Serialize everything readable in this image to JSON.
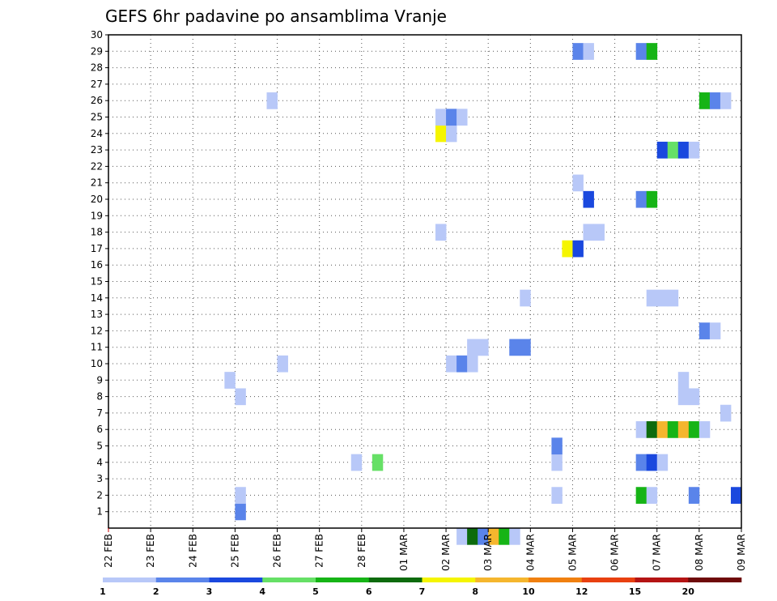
{
  "chart_data": {
    "type": "heatmap",
    "title": "GEFS 6hr padavine po ansamblima Vranje",
    "xlabel": "",
    "ylabel": "",
    "x_tick_labels": [
      "22 FEB",
      "23 FEB",
      "24 FEB",
      "25 FEB",
      "26 FEB",
      "27 FEB",
      "28 FEB",
      "01 MAR",
      "02 MAR",
      "03 MAR",
      "04 MAR",
      "05 MAR",
      "06 MAR",
      "07 MAR",
      "08 MAR",
      "09 MAR"
    ],
    "x_range_days": [
      0,
      15
    ],
    "y_tick_labels": [
      "1",
      "2",
      "3",
      "4",
      "5",
      "6",
      "7",
      "8",
      "9",
      "10",
      "11",
      "12",
      "13",
      "14",
      "15",
      "16",
      "17",
      "18",
      "19",
      "20",
      "21",
      "22",
      "23",
      "24",
      "25",
      "26",
      "27",
      "28",
      "29",
      "30"
    ],
    "y_range": [
      0,
      30
    ],
    "grid": true,
    "legend": {
      "placement": "bottom",
      "labels": [
        "1",
        "2",
        "3",
        "4",
        "5",
        "6",
        "7",
        "8",
        "10",
        "12",
        "15",
        "20"
      ],
      "colors": [
        "#b8c8f8",
        "#5a84ea",
        "#1a48de",
        "#66e066",
        "#16b416",
        "#0d6b0d",
        "#f5f500",
        "#f5b62e",
        "#f08010",
        "#e84010",
        "#b41414",
        "#6e0a0a"
      ]
    },
    "cells_note": "each cell: [day offset from 22 FEB 00Z, member row, level index into legend.colors]",
    "cells": [
      [
        3.0,
        1,
        1
      ],
      [
        3.0,
        2,
        0
      ],
      [
        2.75,
        9,
        0
      ],
      [
        3.0,
        8,
        0
      ],
      [
        4.0,
        10,
        0
      ],
      [
        3.75,
        26,
        0
      ],
      [
        5.75,
        4,
        0
      ],
      [
        6.25,
        4,
        3
      ],
      [
        7.75,
        18,
        0
      ],
      [
        7.75,
        24,
        6
      ],
      [
        8.0,
        24,
        0
      ],
      [
        7.75,
        25,
        0
      ],
      [
        8.0,
        25,
        1
      ],
      [
        8.25,
        25,
        0
      ],
      [
        8.0,
        10,
        0
      ],
      [
        8.25,
        10,
        1
      ],
      [
        8.5,
        10,
        0
      ],
      [
        8.5,
        11,
        0
      ],
      [
        8.75,
        11,
        0
      ],
      [
        8.25,
        -0.5,
        0
      ],
      [
        8.5,
        -0.5,
        5
      ],
      [
        8.75,
        -0.5,
        1
      ],
      [
        9.0,
        -0.5,
        7
      ],
      [
        9.25,
        -0.5,
        4
      ],
      [
        9.5,
        -0.5,
        0
      ],
      [
        9.5,
        11,
        1
      ],
      [
        9.75,
        11,
        1
      ],
      [
        9.75,
        14,
        0
      ],
      [
        10.5,
        2,
        0
      ],
      [
        10.5,
        4,
        0
      ],
      [
        10.5,
        5,
        1
      ],
      [
        10.75,
        17,
        6
      ],
      [
        11.0,
        17,
        2
      ],
      [
        11.0,
        21,
        0
      ],
      [
        11.0,
        29,
        1
      ],
      [
        11.25,
        29,
        0
      ],
      [
        11.25,
        20,
        2
      ],
      [
        11.25,
        18,
        0
      ],
      [
        11.5,
        18,
        0
      ],
      [
        12.5,
        2,
        4
      ],
      [
        12.75,
        2,
        0
      ],
      [
        12.5,
        4,
        1
      ],
      [
        12.75,
        4,
        2
      ],
      [
        13.0,
        4,
        0
      ],
      [
        12.5,
        6,
        0
      ],
      [
        12.75,
        6,
        5
      ],
      [
        13.0,
        6,
        7
      ],
      [
        13.25,
        6,
        4
      ],
      [
        13.5,
        6,
        7
      ],
      [
        13.75,
        6,
        4
      ],
      [
        14.0,
        6,
        0
      ],
      [
        12.5,
        20,
        1
      ],
      [
        12.75,
        20,
        4
      ],
      [
        12.5,
        29,
        1
      ],
      [
        12.75,
        29,
        4
      ],
      [
        12.75,
        14,
        0
      ],
      [
        13.0,
        14,
        0
      ],
      [
        13.25,
        14,
        0
      ],
      [
        13.0,
        23,
        2
      ],
      [
        13.25,
        23,
        3
      ],
      [
        13.5,
        23,
        2
      ],
      [
        13.75,
        23,
        0
      ],
      [
        13.5,
        8,
        0
      ],
      [
        13.75,
        8,
        0
      ],
      [
        13.5,
        9,
        0
      ],
      [
        13.75,
        2,
        1
      ],
      [
        14.0,
        12,
        1
      ],
      [
        14.25,
        12,
        0
      ],
      [
        14.0,
        26,
        4
      ],
      [
        14.25,
        26,
        1
      ],
      [
        14.5,
        26,
        0
      ],
      [
        14.5,
        7,
        0
      ],
      [
        14.75,
        2,
        2
      ]
    ]
  }
}
